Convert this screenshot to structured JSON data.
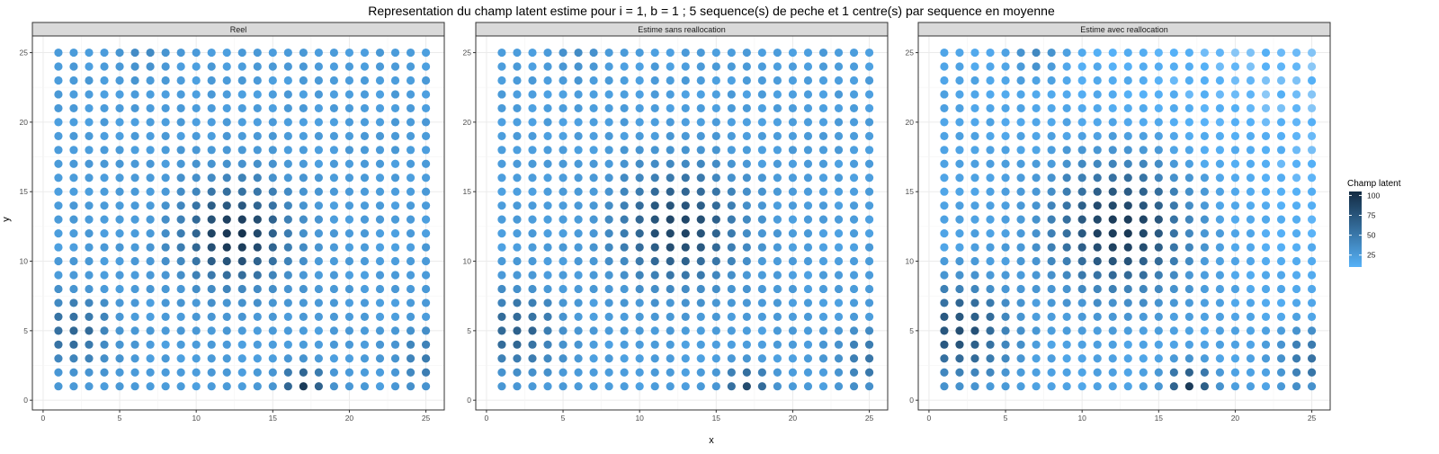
{
  "chart_data": {
    "type": "scatter",
    "title": "Representation du champ latent estime pour i = 1, b = 1 ; 5 sequence(s) de peche et 1 centre(s) par sequence en moyenne",
    "xlabel": "x",
    "ylabel": "y",
    "xlim": [
      -0.7,
      26.2
    ],
    "ylim": [
      -0.7,
      26.2
    ],
    "x_ticks": [
      0,
      5,
      10,
      15,
      20,
      25
    ],
    "y_ticks": [
      0,
      5,
      10,
      15,
      20,
      25
    ],
    "grid": true,
    "legend": {
      "title": "Champ latent",
      "placement": "right",
      "ticks": [
        25,
        50,
        75,
        100
      ],
      "range": [
        10,
        105
      ],
      "color_low": "#56B1F7",
      "color_high": "#132B43"
    },
    "grid_x": [
      1,
      25
    ],
    "grid_y": [
      1,
      25
    ],
    "panels": [
      {
        "strip_label": "Reel",
        "hotspots": [
          {
            "x": 12.5,
            "y": 12,
            "amp": 75,
            "sigma": 2.3
          },
          {
            "x": 2,
            "y": 5,
            "amp": 40,
            "sigma": 1.6
          },
          {
            "x": 17,
            "y": 1,
            "amp": 70,
            "sigma": 0.9
          },
          {
            "x": 25,
            "y": 3,
            "amp": 25,
            "sigma": 1.3
          },
          {
            "x": 6.5,
            "y": 25,
            "amp": 15,
            "sigma": 1.1
          }
        ],
        "base": 25,
        "fade_left_top": 0
      },
      {
        "strip_label": "Estime sans reallocation",
        "hotspots": [
          {
            "x": 12.5,
            "y": 12.5,
            "amp": 65,
            "sigma": 2.6
          },
          {
            "x": 2,
            "y": 5,
            "amp": 45,
            "sigma": 1.8
          },
          {
            "x": 17,
            "y": 1,
            "amp": 60,
            "sigma": 0.9
          },
          {
            "x": 25,
            "y": 3,
            "amp": 30,
            "sigma": 1.4
          },
          {
            "x": 6,
            "y": 25,
            "amp": 15,
            "sigma": 1.1
          }
        ],
        "base": 24,
        "fade_left_top": 0
      },
      {
        "strip_label": "Estime avec reallocation",
        "hotspots": [
          {
            "x": 12.5,
            "y": 12.5,
            "amp": 78,
            "sigma": 3.0
          },
          {
            "x": 2,
            "y": 5,
            "amp": 62,
            "sigma": 2.2
          },
          {
            "x": 17,
            "y": 1,
            "amp": 75,
            "sigma": 1.0
          },
          {
            "x": 25,
            "y": 3,
            "amp": 40,
            "sigma": 1.5
          },
          {
            "x": 7,
            "y": 25,
            "amp": 25,
            "sigma": 1.2
          }
        ],
        "base": 20,
        "fade_left_top": 12
      }
    ]
  }
}
